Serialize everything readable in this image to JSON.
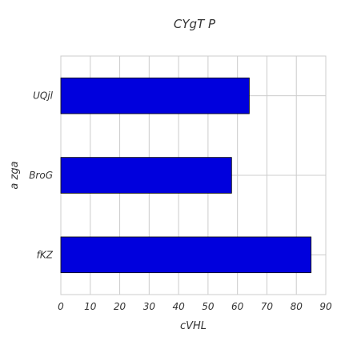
{
  "chart_data": {
    "type": "bar",
    "orientation": "horizontal",
    "title": "CYgT P",
    "xlabel": "cVHL",
    "ylabel": "a zga",
    "categories": [
      "fKZ",
      "BroG",
      "UQjl"
    ],
    "values": [
      85,
      58,
      64
    ],
    "xlim": [
      0,
      90
    ],
    "xticks": [
      0,
      10,
      20,
      30,
      40,
      50,
      60,
      70,
      80,
      90
    ],
    "grid": true,
    "bar_color": "#0000dd",
    "bar_edge_color": "#000000"
  }
}
